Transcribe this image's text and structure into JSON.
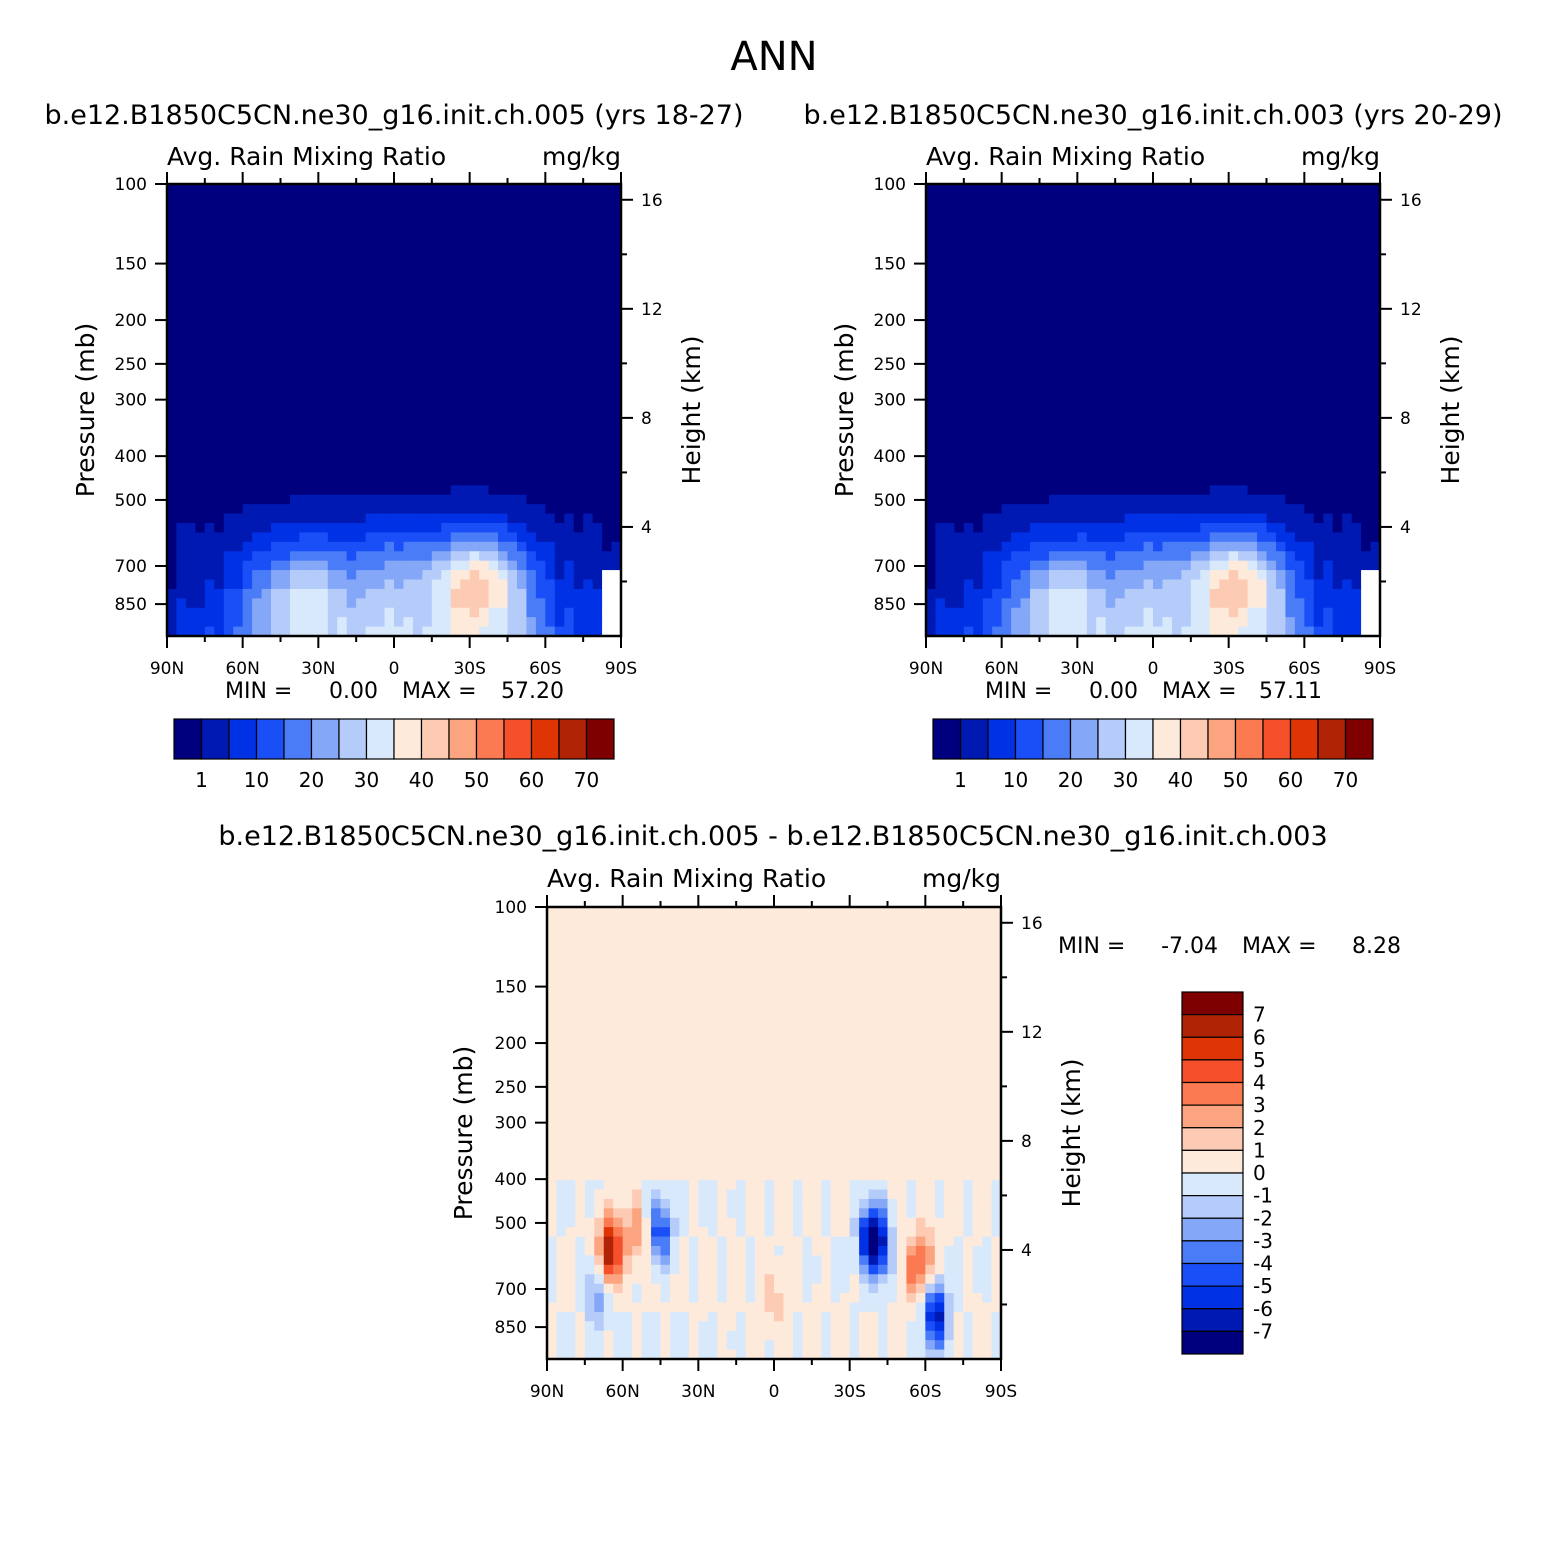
{
  "figure": {
    "title": "ANN",
    "colors": {
      "abs_fill": [
        "#00007f",
        "#0019b2",
        "#0031e5",
        "#1a4ff7",
        "#4a7cf7",
        "#85a7f7",
        "#b5ccfa",
        "#d9e9fc",
        "#feeadb",
        "#fdcbb3",
        "#fca47f",
        "#fc7a52",
        "#f5502b",
        "#df3505",
        "#b02405",
        "#7f0000"
      ],
      "diff_fill": [
        "#00007f",
        "#0019b2",
        "#0031e5",
        "#1a4ff7",
        "#4a7cf7",
        "#85a7f7",
        "#b5ccfa",
        "#d9e9fc",
        "#feeadb",
        "#fdcbb3",
        "#fca47f",
        "#fc7a52",
        "#f5502b",
        "#df3505",
        "#b02405",
        "#7f0000"
      ]
    }
  },
  "chart_data": [
    {
      "type": "heatmap",
      "subtitle": "b.e12.B1850C5CN.ne30_g16.init.ch.005 (yrs 18-27)",
      "left_title": "Avg. Rain Mixing Ratio",
      "right_title": "mg/kg",
      "xlabel": "",
      "ylabel": "Pressure (mb)",
      "y2label": "Height (km)",
      "x_ticks": [
        "90N",
        "60N",
        "30N",
        "0",
        "30S",
        "60S",
        "90S"
      ],
      "y_ticks": [
        "100",
        "150",
        "200",
        "250",
        "300",
        "400",
        "500",
        "700",
        "850"
      ],
      "y2_ticks": [
        "16",
        "12",
        "8",
        "4"
      ],
      "min_label": "MIN =",
      "min_value": "0.00",
      "max_label": "MAX =",
      "max_value": "57.20",
      "colorbar_labels": [
        "1",
        "10",
        "20",
        "30",
        "40",
        "50",
        "60",
        "70"
      ],
      "features": [
        {
          "lat": -35,
          "p": 760,
          "value": 57
        },
        {
          "lat": 38,
          "p": 790,
          "value": 45
        },
        {
          "lat": 8,
          "p": 720,
          "value": 35
        },
        {
          "lat": -12,
          "p": 720,
          "value": 35
        }
      ]
    },
    {
      "type": "heatmap",
      "subtitle": "b.e12.B1850C5CN.ne30_g16.init.ch.003 (yrs 20-29)",
      "left_title": "Avg. Rain Mixing Ratio",
      "right_title": "mg/kg",
      "xlabel": "",
      "ylabel": "Pressure (mb)",
      "y2label": "Height (km)",
      "x_ticks": [
        "90N",
        "60N",
        "30N",
        "0",
        "30S",
        "60S",
        "90S"
      ],
      "y_ticks": [
        "100",
        "150",
        "200",
        "250",
        "300",
        "400",
        "500",
        "700",
        "850"
      ],
      "y2_ticks": [
        "16",
        "12",
        "8",
        "4"
      ],
      "min_label": "MIN =",
      "min_value": "0.00",
      "max_label": "MAX =",
      "max_value": "57.11",
      "colorbar_labels": [
        "1",
        "10",
        "20",
        "30",
        "40",
        "50",
        "60",
        "70"
      ],
      "features": [
        {
          "lat": -35,
          "p": 760,
          "value": 57
        },
        {
          "lat": 38,
          "p": 790,
          "value": 44
        },
        {
          "lat": 8,
          "p": 720,
          "value": 35
        },
        {
          "lat": -12,
          "p": 720,
          "value": 35
        }
      ]
    },
    {
      "type": "heatmap",
      "subtitle": "b.e12.B1850C5CN.ne30_g16.init.ch.005 - b.e12.B1850C5CN.ne30_g16.init.ch.003",
      "left_title": "Avg. Rain Mixing Ratio",
      "right_title": "mg/kg",
      "xlabel": "",
      "ylabel": "Pressure (mb)",
      "y2label": "Height (km)",
      "x_ticks": [
        "90N",
        "60N",
        "30N",
        "0",
        "30S",
        "60S",
        "90S"
      ],
      "y_ticks": [
        "100",
        "150",
        "200",
        "250",
        "300",
        "400",
        "500",
        "700",
        "850"
      ],
      "y2_ticks": [
        "16",
        "12",
        "8",
        "4"
      ],
      "min_label": "MIN =",
      "min_value": "-7.04",
      "max_label": "MAX =",
      "max_value": "8.28",
      "colorbar_labels": [
        "7",
        "6",
        "5",
        "4",
        "3",
        "2",
        "1",
        "0",
        "-1",
        "-2",
        "-3",
        "-4",
        "-5",
        "-6",
        "-7"
      ],
      "features": [
        {
          "lat": 65,
          "p": 580,
          "value": 7.5
        },
        {
          "lat": 55,
          "p": 520,
          "value": 3
        },
        {
          "lat": 45,
          "p": 520,
          "value": -5
        },
        {
          "lat": -38,
          "p": 540,
          "value": -6.5
        },
        {
          "lat": -42,
          "p": 560,
          "value": -5
        },
        {
          "lat": -64,
          "p": 800,
          "value": -7
        },
        {
          "lat": -60,
          "p": 600,
          "value": 3
        },
        {
          "lat": 70,
          "p": 720,
          "value": -3
        },
        {
          "lat": -55,
          "p": 630,
          "value": 2.5
        },
        {
          "lat": 0,
          "p": 740,
          "value": 1.5
        }
      ]
    }
  ]
}
